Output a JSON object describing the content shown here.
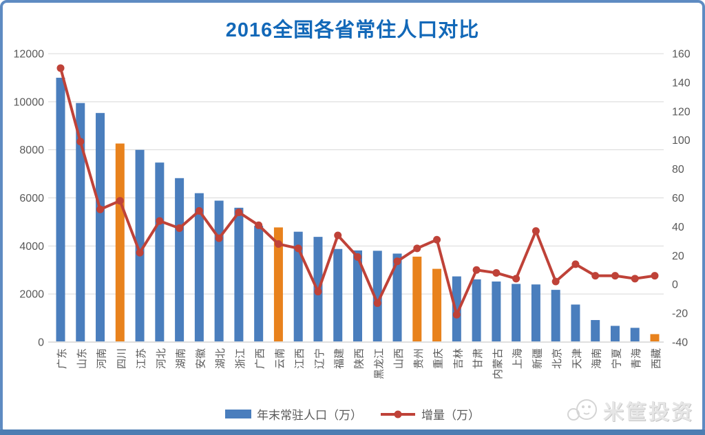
{
  "title": "2016全国各省常住人口对比",
  "legend": {
    "bar_label": "年末常驻人口（万）",
    "line_label": "增量（万）"
  },
  "watermark": {
    "text": "米筐投资"
  },
  "colors": {
    "bar": "#4A7EBD",
    "bar_highlight": "#E8821D",
    "line": "#BF4238",
    "title": "#1268B8",
    "frame_border": "#5E8BC2",
    "bottom_bar": "#4D7DB2",
    "axis_text": "#595959",
    "gridline": "#D8D8D8",
    "axis_line": "#BFBFBF",
    "watermark_gray": "#D8D8D8"
  },
  "chart_data": {
    "type": "bar",
    "combo": "bar+line dual axis",
    "title": "2016全国各省常住人口对比",
    "categories": [
      "广东",
      "山东",
      "河南",
      "四川",
      "江苏",
      "河北",
      "湖南",
      "安徽",
      "湖北",
      "浙江",
      "广西",
      "云南",
      "江西",
      "辽宁",
      "福建",
      "陕西",
      "黑龙江",
      "山西",
      "贵州",
      "重庆",
      "吉林",
      "甘肃",
      "内蒙古",
      "上海",
      "新疆",
      "北京",
      "天津",
      "海南",
      "宁夏",
      "青海",
      "西藏"
    ],
    "series": [
      {
        "name": "年末常驻人口（万）",
        "type": "bar",
        "axis": "left",
        "color": "#4A7EBD",
        "highlight_color": "#E8821D",
        "values": [
          10999,
          9947,
          9532,
          8262,
          7999,
          7470,
          6822,
          6196,
          5885,
          5590,
          4838,
          4771,
          4592,
          4378,
          3874,
          3813,
          3799,
          3682,
          3555,
          3048,
          2733,
          2610,
          2520,
          2420,
          2398,
          2173,
          1562,
          917,
          675,
          593,
          331
        ]
      },
      {
        "name": "增量（万）",
        "type": "line",
        "axis": "right",
        "color": "#BF4238",
        "values": [
          150,
          99,
          52,
          58,
          22,
          44,
          39,
          51,
          32,
          50,
          41,
          28,
          25,
          -5,
          34,
          19,
          -13,
          16,
          25,
          31,
          -21,
          10,
          8,
          4,
          37,
          2,
          14,
          6,
          6,
          4,
          6
        ]
      }
    ],
    "highlighted_categories": [
      "四川",
      "云南",
      "贵州",
      "重庆",
      "西藏"
    ],
    "left_axis": {
      "min": 0,
      "max": 12000,
      "step": 2000,
      "ticks": [
        0,
        2000,
        4000,
        6000,
        8000,
        10000,
        12000
      ]
    },
    "right_axis": {
      "min": -40,
      "max": 160,
      "step": 20,
      "ticks": [
        -40,
        -20,
        0,
        20,
        40,
        60,
        80,
        100,
        120,
        140,
        160
      ]
    },
    "grid": true,
    "legend_position": "bottom",
    "x_labels_rotation": -90
  }
}
